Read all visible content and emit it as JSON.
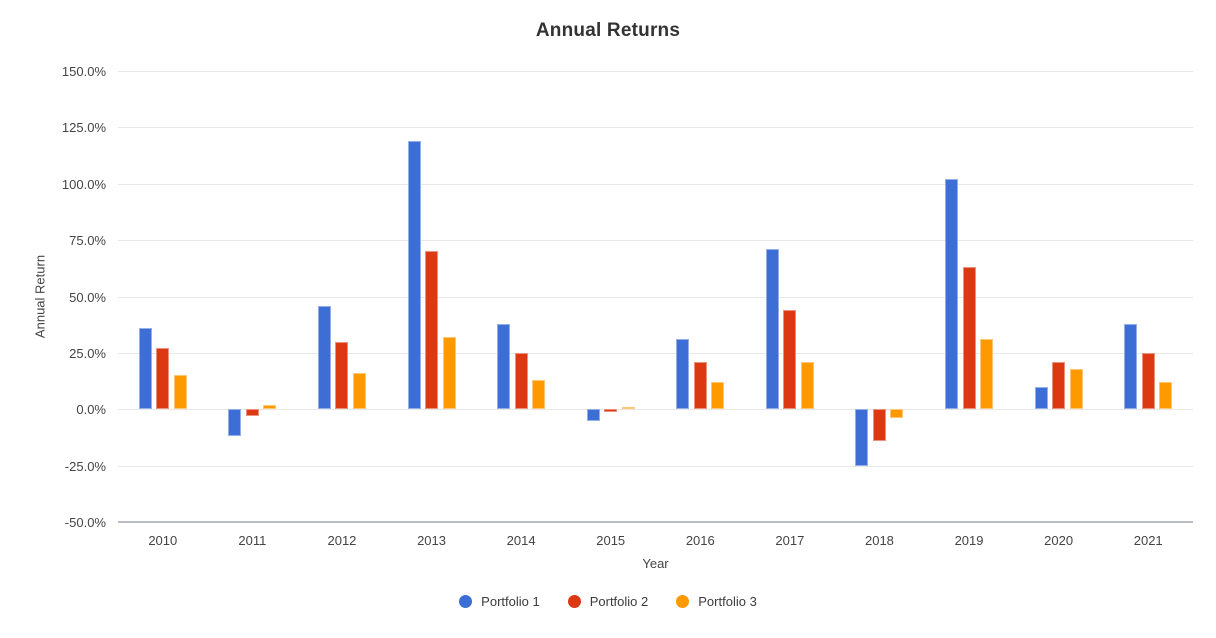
{
  "chart_data": {
    "type": "bar",
    "title": "Annual Returns",
    "xlabel": "Year",
    "ylabel": "Annual Return",
    "categories": [
      "2010",
      "2011",
      "2012",
      "2013",
      "2014",
      "2015",
      "2016",
      "2017",
      "2018",
      "2019",
      "2020",
      "2021"
    ],
    "series": [
      {
        "name": "Portfolio 1",
        "color": "#3c6ed5",
        "values": [
          36,
          -12,
          46,
          119,
          38,
          -5,
          31,
          71,
          -25,
          102,
          10,
          38
        ]
      },
      {
        "name": "Portfolio 2",
        "color": "#dc3912",
        "values": [
          27,
          -3,
          30,
          70,
          25,
          -1,
          21,
          44,
          -14,
          63,
          21,
          25
        ]
      },
      {
        "name": "Portfolio 3",
        "color": "#ff9900",
        "values": [
          15,
          2,
          16,
          32,
          13,
          1,
          12,
          21,
          -4,
          31,
          18,
          12
        ]
      }
    ],
    "value_unit": "percent",
    "ylim": [
      -50,
      150
    ],
    "y_ticks": [
      150,
      125,
      100,
      75,
      50,
      25,
      0,
      -25,
      -50
    ],
    "y_tick_labels": [
      "150.0%",
      "125.0%",
      "100.0%",
      "75.0%",
      "50.0%",
      "25.0%",
      "0.0%",
      "-25.0%",
      "-50.0%"
    ],
    "grid": true,
    "legend_position": "bottom"
  }
}
